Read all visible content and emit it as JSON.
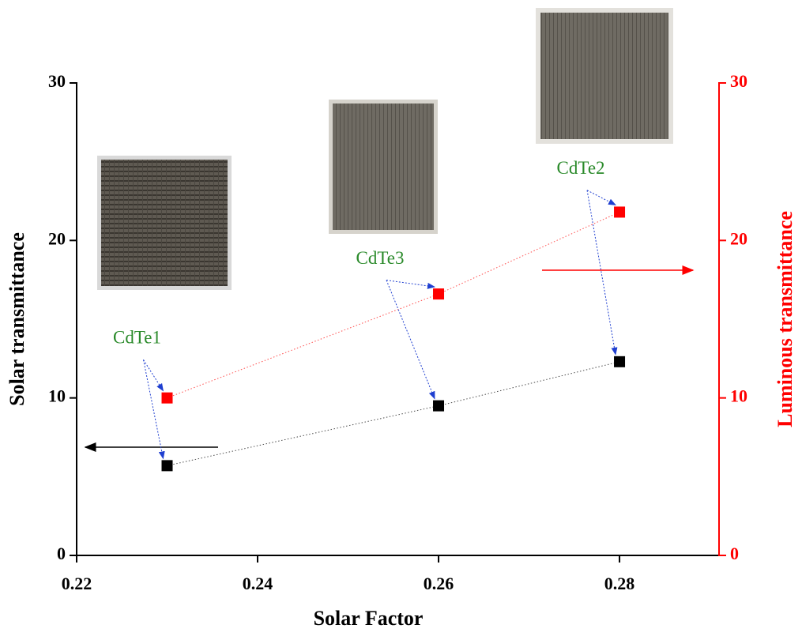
{
  "chart_data": {
    "type": "scatter",
    "x_label": "Solar Factor",
    "y_label": "Solar transmittance",
    "y2_label": "Luminous transmittance",
    "x": [
      0.23,
      0.26,
      0.28
    ],
    "series": [
      {
        "color": "#000000",
        "values": [
          5.7,
          9.5,
          12.3
        ]
      },
      {
        "color": "#ff0000",
        "axis": "y2",
        "values": [
          10.0,
          16.6,
          21.8
        ]
      }
    ],
    "annotations": [
      "CdTe1",
      "CdTe3",
      "CdTe2"
    ],
    "xlim": [
      0.22,
      0.291
    ],
    "xticks": [
      0.22,
      0.24,
      0.26,
      0.28
    ],
    "ylim": [
      0,
      30
    ],
    "yticks": [
      0,
      10,
      20,
      30
    ],
    "y2lim": [
      0,
      30
    ],
    "y2ticks": [
      0,
      10,
      20,
      30
    ],
    "y2_color": "#ff0000"
  }
}
